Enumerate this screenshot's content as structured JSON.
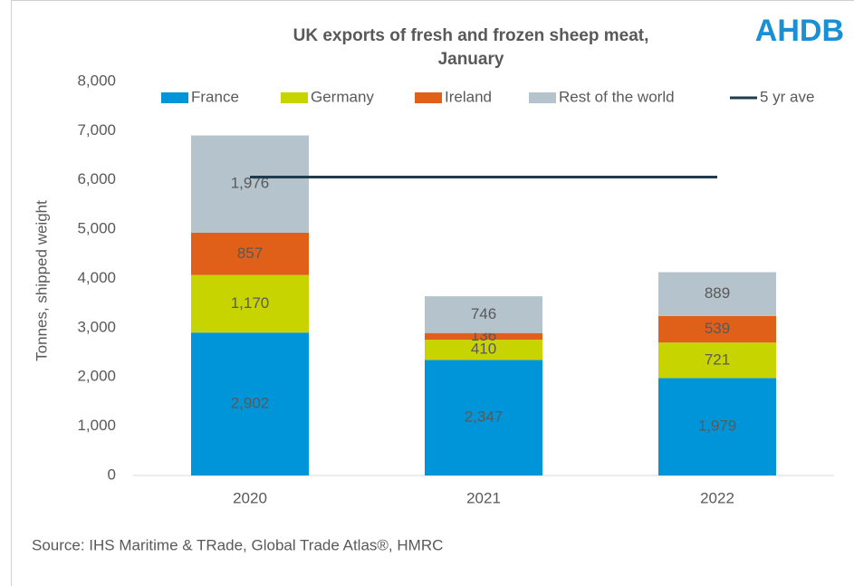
{
  "chart_data": {
    "type": "bar",
    "stacked": true,
    "title": [
      "UK exports of fresh and frozen sheep meat,",
      "January"
    ],
    "logo": "AHDB",
    "ylabel": "Tonnes, shipped weight",
    "source": "Source: IHS Maritime & TRade, Global Trade Atlas®, HMRC",
    "categories": [
      "2020",
      "2021",
      "2022"
    ],
    "ylim": [
      0,
      8000
    ],
    "yticks": [
      0,
      {
        "value": 1000,
        "label": "1,000"
      },
      {
        "value": 2000,
        "label": "2,000"
      },
      {
        "value": 3000,
        "label": "3,000"
      },
      {
        "value": 4000,
        "label": "4,000"
      },
      {
        "value": 5000,
        "label": "5,000"
      },
      {
        "value": 6000,
        "label": "6,000"
      },
      {
        "value": 7000,
        "label": "7,000"
      },
      {
        "value": 8000,
        "label": "8,000"
      }
    ],
    "series": [
      {
        "name": "France",
        "color": "#0095d9",
        "values": [
          2902,
          2347,
          1979
        ],
        "value_labels": [
          "2,902",
          "2,347",
          "1,979"
        ]
      },
      {
        "name": "Germany",
        "color": "#c8d400",
        "values": [
          1170,
          410,
          721
        ],
        "value_labels": [
          "1,170",
          "410",
          "721"
        ]
      },
      {
        "name": "Ireland",
        "color": "#e0601a",
        "values": [
          857,
          136,
          539
        ],
        "value_labels": [
          "857",
          "136",
          "539"
        ]
      },
      {
        "name": "Rest of the world",
        "color": "#b5c3cc",
        "values": [
          1976,
          746,
          889
        ],
        "value_labels": [
          "1,976",
          "746",
          "889"
        ]
      },
      {
        "name": "5 yr ave",
        "color": "#1f3b4d",
        "type": "line",
        "values": [
          6060,
          6060,
          6060
        ]
      }
    ]
  }
}
